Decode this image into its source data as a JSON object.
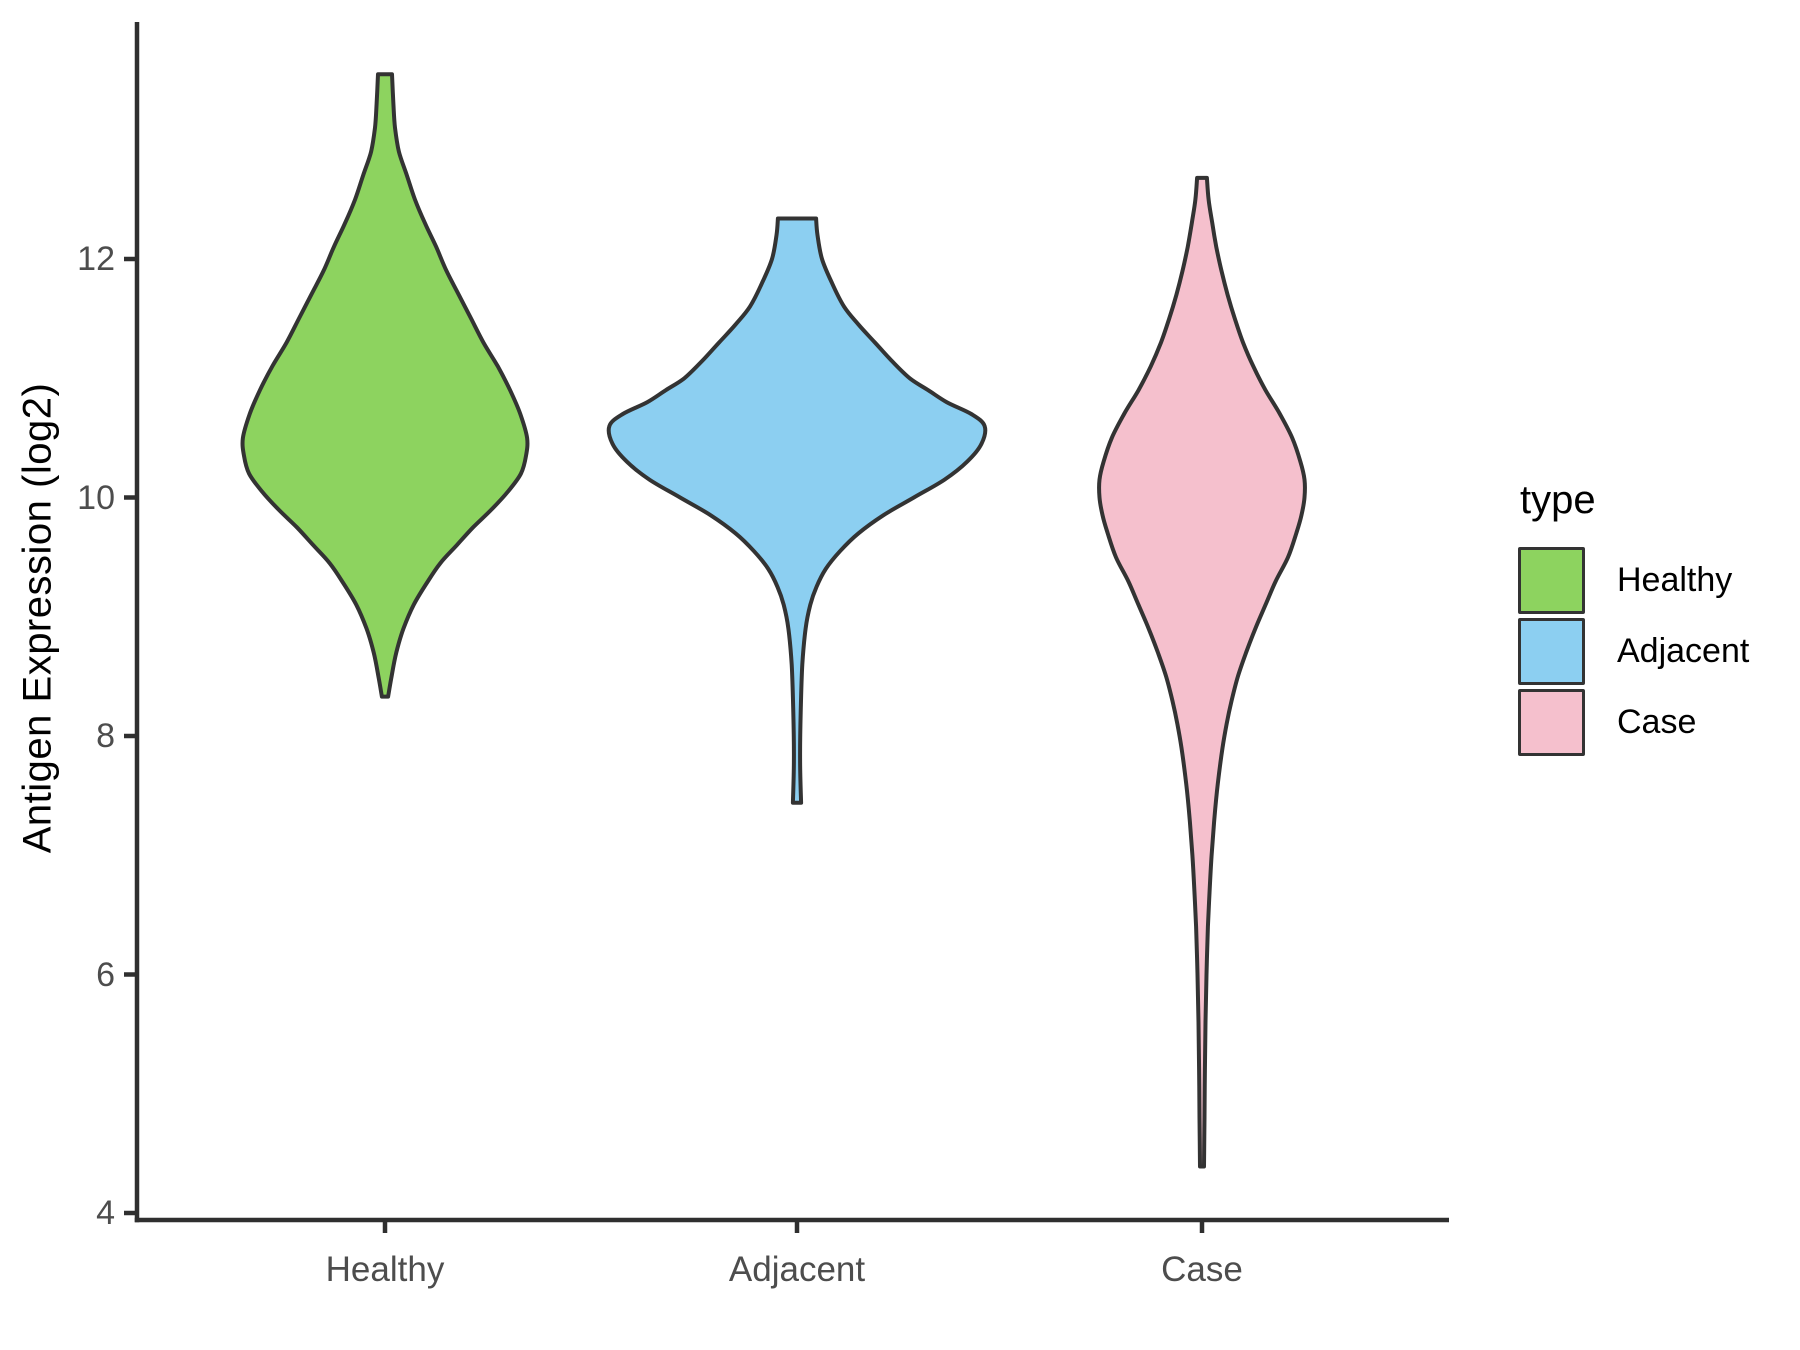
{
  "chart_data": {
    "type": "violin",
    "title": "",
    "ylabel": "Antigen Expression (log2)",
    "xlabel": "",
    "ylim": [
      4,
      14
    ],
    "yticks": [
      4,
      6,
      8,
      10,
      12
    ],
    "categories": [
      "Healthy",
      "Adjacent",
      "Case"
    ],
    "grid": false,
    "legend_position": "right",
    "colors": {
      "outline": "#333333",
      "axis_line": "#2f2f2f",
      "tick_label": "#4d4d4d",
      "title_text": "#000000"
    },
    "legend": {
      "title": "type",
      "entries": [
        "Healthy",
        "Adjacent",
        "Case"
      ]
    },
    "series": [
      {
        "name": "Healthy",
        "fill": "#8DD35F",
        "min": 8.3,
        "max": 13.55,
        "mode": 10.5,
        "profile": [
          [
            13.55,
            0.034
          ],
          [
            13.3,
            0.041
          ],
          [
            13.1,
            0.049
          ],
          [
            12.9,
            0.068
          ],
          [
            12.7,
            0.107
          ],
          [
            12.5,
            0.146
          ],
          [
            12.3,
            0.195
          ],
          [
            12.1,
            0.25
          ],
          [
            11.9,
            0.3
          ],
          [
            11.7,
            0.36
          ],
          [
            11.5,
            0.42
          ],
          [
            11.3,
            0.48
          ],
          [
            11.1,
            0.55
          ],
          [
            10.9,
            0.61
          ],
          [
            10.7,
            0.66
          ],
          [
            10.5,
            0.693
          ],
          [
            10.35,
            0.688
          ],
          [
            10.2,
            0.663
          ],
          [
            10.05,
            0.6
          ],
          [
            9.9,
            0.52
          ],
          [
            9.75,
            0.43
          ],
          [
            9.6,
            0.35
          ],
          [
            9.45,
            0.27
          ],
          [
            9.3,
            0.21
          ],
          [
            9.1,
            0.14
          ],
          [
            8.9,
            0.09
          ],
          [
            8.7,
            0.055
          ],
          [
            8.5,
            0.032
          ],
          [
            8.33,
            0.015
          ]
        ]
      },
      {
        "name": "Adjacent",
        "fill": "#8CCFF1",
        "min": 7.44,
        "max": 12.34,
        "mode": 10.6,
        "profile": [
          [
            12.34,
            0.093
          ],
          [
            12.2,
            0.1
          ],
          [
            12.0,
            0.122
          ],
          [
            11.8,
            0.17
          ],
          [
            11.6,
            0.23
          ],
          [
            11.45,
            0.3
          ],
          [
            11.3,
            0.38
          ],
          [
            11.15,
            0.46
          ],
          [
            11.0,
            0.55
          ],
          [
            10.9,
            0.64
          ],
          [
            10.8,
            0.73
          ],
          [
            10.7,
            0.85
          ],
          [
            10.6,
            0.915
          ],
          [
            10.45,
            0.9
          ],
          [
            10.3,
            0.83
          ],
          [
            10.15,
            0.72
          ],
          [
            10.0,
            0.57
          ],
          [
            9.85,
            0.42
          ],
          [
            9.7,
            0.3
          ],
          [
            9.55,
            0.21
          ],
          [
            9.4,
            0.14
          ],
          [
            9.25,
            0.095
          ],
          [
            9.1,
            0.065
          ],
          [
            8.9,
            0.042
          ],
          [
            8.6,
            0.026
          ],
          [
            8.2,
            0.018
          ],
          [
            7.8,
            0.015
          ],
          [
            7.44,
            0.02
          ]
        ]
      },
      {
        "name": "Case",
        "fill": "#F5C0CD",
        "min": 4.39,
        "max": 12.68,
        "mode": 10.1,
        "profile": [
          [
            12.68,
            0.024
          ],
          [
            12.5,
            0.032
          ],
          [
            12.3,
            0.05
          ],
          [
            12.1,
            0.07
          ],
          [
            11.9,
            0.095
          ],
          [
            11.7,
            0.125
          ],
          [
            11.5,
            0.16
          ],
          [
            11.3,
            0.2
          ],
          [
            11.1,
            0.25
          ],
          [
            10.9,
            0.31
          ],
          [
            10.7,
            0.38
          ],
          [
            10.5,
            0.44
          ],
          [
            10.3,
            0.48
          ],
          [
            10.15,
            0.5
          ],
          [
            10.0,
            0.5
          ],
          [
            9.85,
            0.485
          ],
          [
            9.7,
            0.46
          ],
          [
            9.5,
            0.42
          ],
          [
            9.3,
            0.36
          ],
          [
            9.1,
            0.31
          ],
          [
            8.9,
            0.26
          ],
          [
            8.7,
            0.215
          ],
          [
            8.5,
            0.175
          ],
          [
            8.3,
            0.145
          ],
          [
            8.1,
            0.12
          ],
          [
            7.9,
            0.1
          ],
          [
            7.6,
            0.077
          ],
          [
            7.3,
            0.06
          ],
          [
            7.0,
            0.047
          ],
          [
            6.7,
            0.037
          ],
          [
            6.4,
            0.029
          ],
          [
            6.0,
            0.022
          ],
          [
            5.6,
            0.017
          ],
          [
            5.2,
            0.014
          ],
          [
            4.8,
            0.012
          ],
          [
            4.39,
            0.01
          ]
        ]
      }
    ]
  }
}
